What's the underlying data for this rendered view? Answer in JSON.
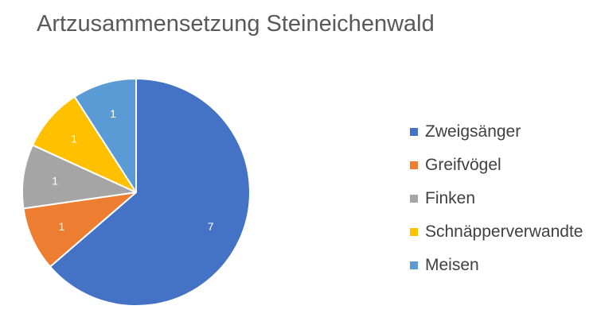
{
  "chart_data": {
    "type": "pie",
    "title": "Artzusammensetzung Steineichenwald",
    "categories": [
      "Zweigsänger",
      "Greifvögel",
      "Finken",
      "Schnäpperverwandte",
      "Meisen"
    ],
    "values": [
      7,
      1,
      1,
      1,
      1
    ],
    "data_labels": [
      "7",
      "1",
      "1",
      "1",
      "1"
    ],
    "colors": [
      "#4472C4",
      "#ED7D31",
      "#A5A5A5",
      "#FFC000",
      "#5B9BD5"
    ],
    "start": "12 o'clock",
    "direction": "clockwise",
    "legend_position": "right"
  }
}
